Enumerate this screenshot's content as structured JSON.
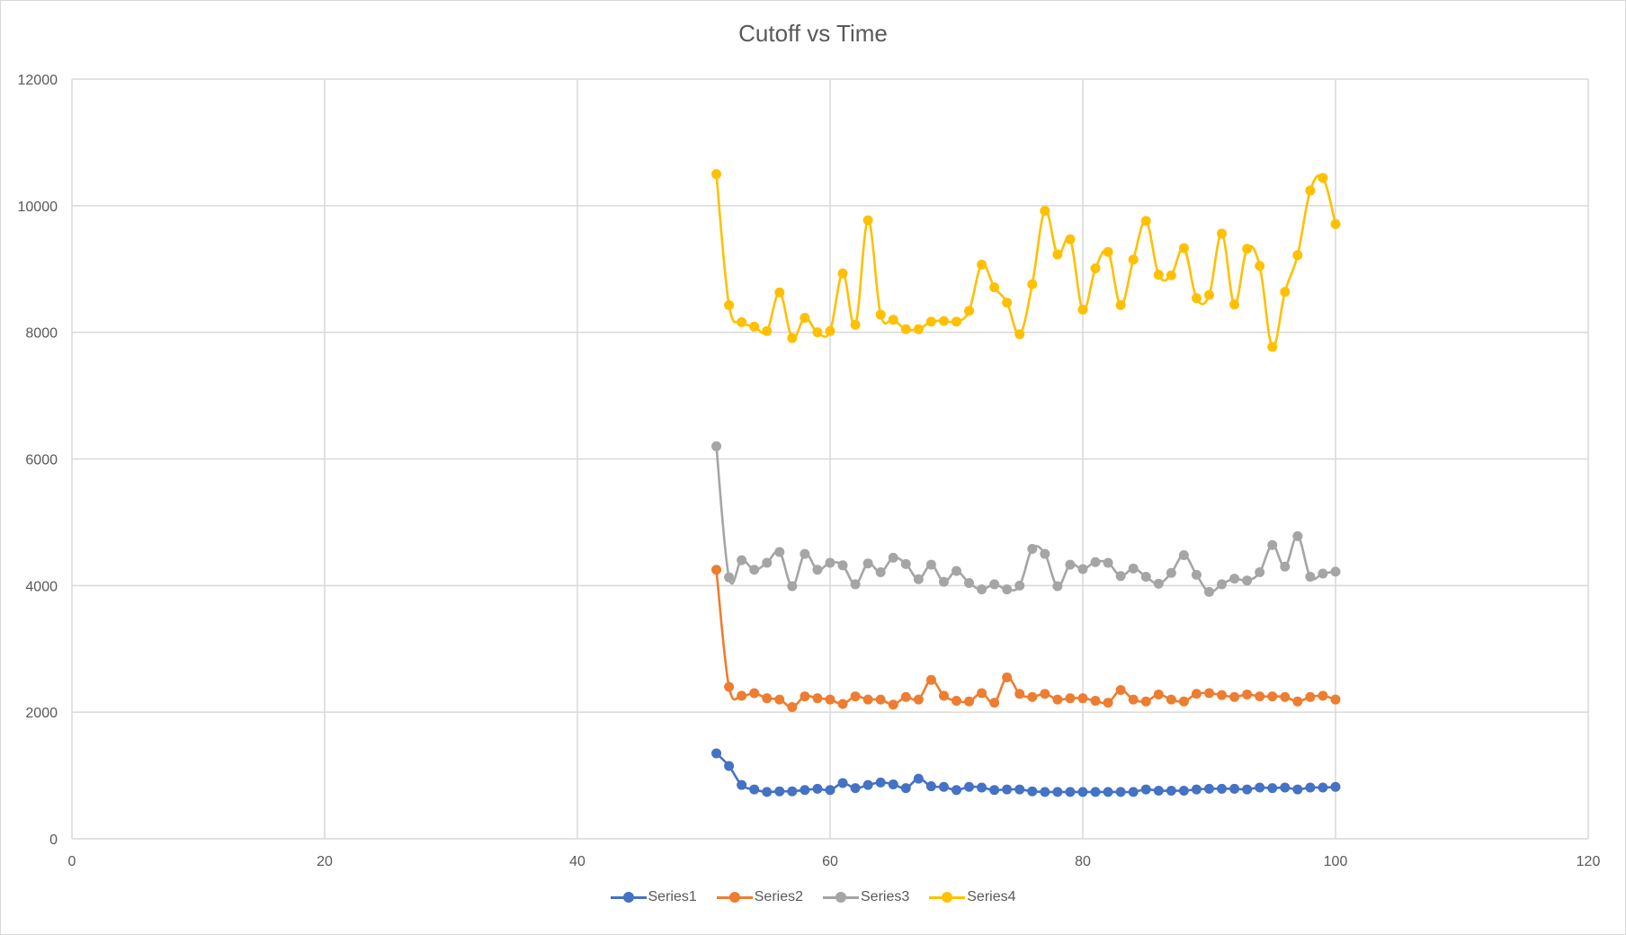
{
  "chart_data": {
    "type": "scatter",
    "title": "Cutoff vs Time",
    "xlabel": "",
    "ylabel": "",
    "xlim": [
      0,
      120
    ],
    "ylim": [
      0,
      12000
    ],
    "x_ticks": [
      "0",
      "20",
      "40",
      "60",
      "80",
      "100",
      "120"
    ],
    "y_ticks": [
      "0",
      "2000",
      "4000",
      "6000",
      "8000",
      "10000",
      "12000"
    ],
    "grid": true,
    "legend_position": "bottom",
    "x": [
      51,
      52,
      53,
      54,
      55,
      56,
      57,
      58,
      59,
      60,
      61,
      62,
      63,
      64,
      65,
      66,
      67,
      68,
      69,
      70,
      71,
      72,
      73,
      74,
      75,
      76,
      77,
      78,
      79,
      80,
      81,
      82,
      83,
      84,
      85,
      86,
      87,
      88,
      89,
      90,
      91,
      92,
      93,
      94,
      95,
      96,
      97,
      98,
      99,
      100
    ],
    "series": [
      {
        "name": "Series1",
        "color": "#4472C4",
        "values": [
          1350,
          1150,
          850,
          780,
          740,
          750,
          750,
          770,
          790,
          770,
          880,
          800,
          850,
          890,
          860,
          800,
          950,
          830,
          820,
          770,
          820,
          810,
          770,
          780,
          780,
          750,
          740,
          740,
          740,
          740,
          740,
          740,
          740,
          740,
          780,
          760,
          760,
          760,
          780,
          790,
          790,
          790,
          780,
          810,
          800,
          810,
          780,
          810,
          810,
          820
        ]
      },
      {
        "name": "Series2",
        "color": "#ED7D31",
        "values": [
          4250,
          2400,
          2260,
          2300,
          2220,
          2200,
          2080,
          2250,
          2220,
          2200,
          2130,
          2250,
          2200,
          2200,
          2120,
          2240,
          2200,
          2510,
          2260,
          2180,
          2170,
          2300,
          2150,
          2550,
          2290,
          2240,
          2290,
          2200,
          2220,
          2220,
          2180,
          2150,
          2350,
          2200,
          2170,
          2280,
          2200,
          2170,
          2290,
          2300,
          2270,
          2240,
          2280,
          2250,
          2250,
          2240,
          2170,
          2240,
          2260,
          2200
        ]
      },
      {
        "name": "Series3",
        "color": "#A5A5A5",
        "values": [
          6200,
          4130,
          4400,
          4250,
          4360,
          4530,
          3990,
          4500,
          4250,
          4360,
          4320,
          4020,
          4350,
          4210,
          4440,
          4340,
          4100,
          4330,
          4060,
          4230,
          4040,
          3940,
          4020,
          3940,
          4000,
          4580,
          4500,
          3990,
          4330,
          4260,
          4370,
          4360,
          4150,
          4270,
          4140,
          4030,
          4200,
          4480,
          4170,
          3900,
          4020,
          4110,
          4080,
          4210,
          4640,
          4300,
          4780,
          4140,
          4190,
          4220
        ]
      },
      {
        "name": "Series4",
        "color": "#FFC000",
        "values": [
          10500,
          8430,
          8160,
          8090,
          8020,
          8630,
          7910,
          8230,
          8000,
          8020,
          8930,
          8120,
          9770,
          8280,
          8200,
          8050,
          8050,
          8170,
          8180,
          8170,
          8340,
          9070,
          8710,
          8470,
          7970,
          8760,
          9920,
          9230,
          9470,
          8360,
          9010,
          9270,
          8430,
          9150,
          9760,
          8910,
          8900,
          9330,
          8540,
          8590,
          9560,
          8440,
          9320,
          9050,
          7770,
          8640,
          9220,
          10240,
          10440,
          9710
        ]
      }
    ]
  }
}
